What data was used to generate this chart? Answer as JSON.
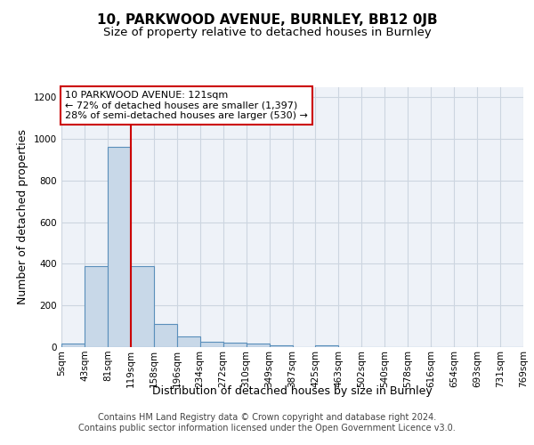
{
  "title": "10, PARKWOOD AVENUE, BURNLEY, BB12 0JB",
  "subtitle": "Size of property relative to detached houses in Burnley",
  "xlabel": "Distribution of detached houses by size in Burnley",
  "ylabel": "Number of detached properties",
  "bin_labels": [
    "5sqm",
    "43sqm",
    "81sqm",
    "119sqm",
    "158sqm",
    "196sqm",
    "234sqm",
    "272sqm",
    "310sqm",
    "349sqm",
    "387sqm",
    "425sqm",
    "463sqm",
    "502sqm",
    "540sqm",
    "578sqm",
    "616sqm",
    "654sqm",
    "693sqm",
    "731sqm",
    "769sqm"
  ],
  "bar_values": [
    15,
    390,
    960,
    390,
    110,
    50,
    25,
    20,
    15,
    10,
    0,
    10,
    0,
    0,
    0,
    0,
    0,
    0,
    0,
    0
  ],
  "bar_color": "#c8d8e8",
  "bar_edge_color": "#5a8fbb",
  "bar_edge_width": 0.8,
  "grid_color": "#ccd5e0",
  "background_color": "#eef2f8",
  "red_line_x": 3,
  "annotation_line1": "10 PARKWOOD AVENUE: 121sqm",
  "annotation_line2": "← 72% of detached houses are smaller (1,397)",
  "annotation_line3": "28% of semi-detached houses are larger (530) →",
  "annotation_box_color": "#ffffff",
  "annotation_border_color": "#cc0000",
  "footer_line1": "Contains HM Land Registry data © Crown copyright and database right 2024.",
  "footer_line2": "Contains public sector information licensed under the Open Government Licence v3.0.",
  "ylim_max": 1250,
  "yticks": [
    0,
    200,
    400,
    600,
    800,
    1000,
    1200
  ],
  "title_fontsize": 11,
  "subtitle_fontsize": 9.5,
  "axis_label_fontsize": 9,
  "tick_fontsize": 7.5,
  "annotation_fontsize": 8,
  "footer_fontsize": 7
}
